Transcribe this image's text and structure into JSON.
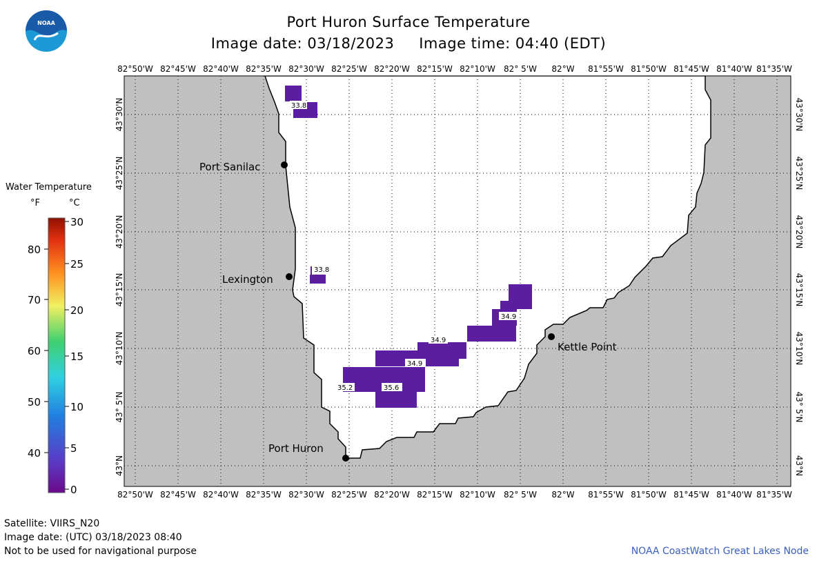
{
  "header": {
    "title": "Port Huron Surface Temperature",
    "subtitle": "Image date: 03/18/2023     Image time: 04:40 (EDT)"
  },
  "logo": {
    "text": "NOAA",
    "colors": {
      "top": "#1a5ba8",
      "bottom": "#1d9ad6"
    }
  },
  "map": {
    "lon_labels": [
      "82°50'W",
      "82°45'W",
      "82°40'W",
      "82°35'W",
      "82°30'W",
      "82°25'W",
      "82°20'W",
      "82°15'W",
      "82°10'W",
      "82° 5'W",
      "82°W",
      "81°55'W",
      "81°50'W",
      "81°45'W",
      "81°40'W",
      "81°35'W"
    ],
    "lat_labels": [
      "43°N",
      "43° 5'N",
      "43°10'N",
      "43°15'N",
      "43°20'N",
      "43°25'N",
      "43°30'N"
    ],
    "land_color": "#c0c0c0",
    "water_color": "#ffffff",
    "places": [
      {
        "name": "Port Sanilac"
      },
      {
        "name": "Lexington"
      },
      {
        "name": "Kettle Point"
      },
      {
        "name": "Port Huron"
      }
    ],
    "value_labels": [
      "33.8",
      "33.8",
      "34.9",
      "34.9",
      "34.9",
      "35.2",
      "35.6"
    ]
  },
  "legend": {
    "title": "Water Temperature",
    "unit_f": "°F",
    "unit_c": "°C",
    "f_ticks": [
      "40",
      "50",
      "60",
      "70",
      "80"
    ],
    "c_ticks": [
      "0",
      "5",
      "10",
      "15",
      "20",
      "25",
      "30"
    ]
  },
  "footer": {
    "satellite": "Satellite: VIIRS_N20",
    "image_date_utc": "Image date: (UTC) 03/18/2023  08:40",
    "disclaimer": "Not to be used for navigational purpose",
    "credit": "NOAA CoastWatch Great Lakes Node"
  }
}
